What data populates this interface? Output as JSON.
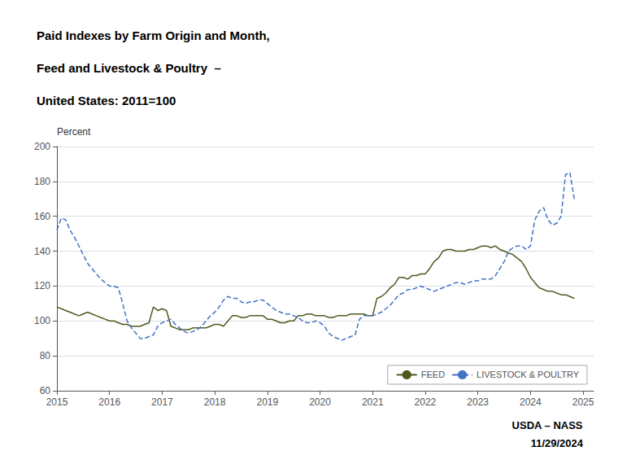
{
  "chart_data": {
    "type": "line",
    "title": "Paid Indexes by Farm Origin and Month,\nFeed and Livestock & Poultry  –\nUnited States: 2011=100",
    "ylabel": "Percent",
    "annotations": [
      "USDA – NASS",
      "11/29/2024"
    ],
    "xlim": [
      2015,
      2025.2
    ],
    "xticks": [
      2015,
      2016,
      2017,
      2018,
      2019,
      2020,
      2021,
      2022,
      2023,
      2024,
      2025
    ],
    "ylim": [
      60,
      200
    ],
    "yticks": [
      60,
      80,
      100,
      120,
      140,
      160,
      180,
      200
    ],
    "grid": true,
    "legend": "lower right",
    "x": [
      2015.0,
      2015.083,
      2015.167,
      2015.25,
      2015.333,
      2015.417,
      2015.5,
      2015.583,
      2015.667,
      2015.75,
      2015.833,
      2015.917,
      2016.0,
      2016.083,
      2016.167,
      2016.25,
      2016.333,
      2016.417,
      2016.5,
      2016.583,
      2016.667,
      2016.75,
      2016.833,
      2016.917,
      2017.0,
      2017.083,
      2017.167,
      2017.25,
      2017.333,
      2017.417,
      2017.5,
      2017.583,
      2017.667,
      2017.75,
      2017.833,
      2017.917,
      2018.0,
      2018.083,
      2018.167,
      2018.25,
      2018.333,
      2018.417,
      2018.5,
      2018.583,
      2018.667,
      2018.75,
      2018.833,
      2018.917,
      2019.0,
      2019.083,
      2019.167,
      2019.25,
      2019.333,
      2019.417,
      2019.5,
      2019.583,
      2019.667,
      2019.75,
      2019.833,
      2019.917,
      2020.0,
      2020.083,
      2020.167,
      2020.25,
      2020.333,
      2020.417,
      2020.5,
      2020.583,
      2020.667,
      2020.75,
      2020.833,
      2020.917,
      2021.0,
      2021.083,
      2021.167,
      2021.25,
      2021.333,
      2021.417,
      2021.5,
      2021.583,
      2021.667,
      2021.75,
      2021.833,
      2021.917,
      2022.0,
      2022.083,
      2022.167,
      2022.25,
      2022.333,
      2022.417,
      2022.5,
      2022.583,
      2022.667,
      2022.75,
      2022.833,
      2022.917,
      2023.0,
      2023.083,
      2023.167,
      2023.25,
      2023.333,
      2023.417,
      2023.5,
      2023.583,
      2023.667,
      2023.75,
      2023.833,
      2023.917,
      2024.0,
      2024.083,
      2024.167,
      2024.25,
      2024.333,
      2024.417,
      2024.5,
      2024.583,
      2024.667,
      2024.75,
      2024.833
    ],
    "series": [
      {
        "name": "FEED",
        "color": "#4d5a1e",
        "line_style": "solid",
        "values": [
          108,
          107,
          106,
          105,
          104,
          103,
          104,
          105,
          104,
          103,
          102,
          101,
          100,
          100,
          99,
          98,
          98,
          97,
          97,
          97,
          98,
          99,
          108,
          106,
          107,
          106,
          97,
          96,
          95,
          95,
          95,
          96,
          96,
          96,
          96,
          97,
          98,
          98,
          97,
          100,
          103,
          103,
          102,
          102,
          103,
          103,
          103,
          103,
          101,
          101,
          100,
          99,
          99,
          100,
          100,
          103,
          103,
          104,
          104,
          103,
          103,
          103,
          102,
          102,
          103,
          103,
          103,
          104,
          104,
          104,
          104,
          103,
          103,
          113,
          114,
          116,
          119,
          121,
          125,
          125,
          124,
          126,
          126,
          127,
          127,
          130,
          134,
          136,
          140,
          141,
          141,
          140,
          140,
          140,
          141,
          141,
          142,
          143,
          143,
          142,
          143,
          141,
          140,
          139,
          138,
          136,
          134,
          130,
          125,
          122,
          119,
          118,
          117,
          117,
          116,
          115,
          115,
          114,
          113
        ]
      },
      {
        "name": "LIVESTOCK & POULTRY",
        "color": "#4472c4",
        "line_style": "dashed",
        "values": [
          152,
          159,
          158,
          152,
          148,
          143,
          138,
          133,
          130,
          127,
          124,
          122,
          120,
          120,
          119,
          110,
          100,
          96,
          93,
          90,
          90,
          91,
          92,
          97,
          99,
          100,
          101,
          98,
          96,
          94,
          93,
          94,
          95,
          97,
          100,
          103,
          105,
          108,
          112,
          114,
          113,
          113,
          111,
          110,
          111,
          111,
          112,
          112,
          110,
          108,
          106,
          105,
          104,
          104,
          103,
          102,
          100,
          99,
          99,
          100,
          99,
          97,
          93,
          91,
          90,
          89,
          90,
          91,
          92,
          101,
          103,
          103,
          103,
          104,
          105,
          107,
          109,
          112,
          115,
          116,
          118,
          118,
          119,
          120,
          119,
          118,
          117,
          118,
          119,
          120,
          121,
          122,
          122,
          121,
          122,
          123,
          123,
          124,
          124,
          124,
          126,
          130,
          134,
          140,
          142,
          143,
          143,
          141,
          143,
          158,
          163,
          165,
          158,
          155,
          156,
          160,
          184,
          185,
          170
        ]
      }
    ]
  }
}
